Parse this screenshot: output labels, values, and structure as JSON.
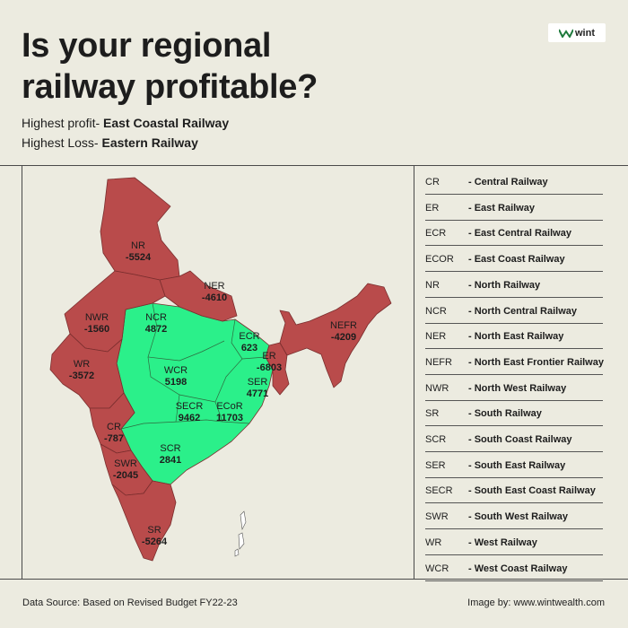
{
  "title_line1": "Is your regional",
  "title_line2": "railway profitable?",
  "highest_profit_label": "Highest profit- ",
  "highest_profit_value": "East Coastal Railway",
  "highest_loss_label": "Highest Loss- ",
  "highest_loss_value": "Eastern Railway",
  "logo_text": "wint",
  "colors": {
    "profit": "#2bf08a",
    "loss": "#b94b4b",
    "background": "#ecebe0"
  },
  "zones": [
    {
      "code": "NR",
      "value": "-5524"
    },
    {
      "code": "NER",
      "value": "-4610"
    },
    {
      "code": "NWR",
      "value": "-1560"
    },
    {
      "code": "NCR",
      "value": "4872"
    },
    {
      "code": "NEFR",
      "value": "-4209"
    },
    {
      "code": "ECR",
      "value": "623"
    },
    {
      "code": "ER",
      "value": "-6803"
    },
    {
      "code": "WR",
      "value": "-3572"
    },
    {
      "code": "WCR",
      "value": "5198"
    },
    {
      "code": "SER",
      "value": "4771"
    },
    {
      "code": "SECR",
      "value": "9462"
    },
    {
      "code": "ECoR",
      "value": "11703"
    },
    {
      "code": "CR",
      "value": "-787"
    },
    {
      "code": "SCR",
      "value": "2841"
    },
    {
      "code": "SWR",
      "value": "-2045"
    },
    {
      "code": "SR",
      "value": "-5264"
    }
  ],
  "legend": [
    {
      "code": "CR",
      "name": "- Central Railway"
    },
    {
      "code": "ER",
      "name": "- East Railway"
    },
    {
      "code": "ECR",
      "name": "- East Central Railway"
    },
    {
      "code": "ECOR",
      "name": "- East Coast Railway"
    },
    {
      "code": "NR",
      "name": "- North Railway"
    },
    {
      "code": "NCR",
      "name": "- North Central Railway"
    },
    {
      "code": "NER",
      "name": "- North East Railway"
    },
    {
      "code": "NEFR",
      "name": "- North East Frontier Railway"
    },
    {
      "code": "NWR",
      "name": "- North West Railway"
    },
    {
      "code": "SR",
      "name": "- South Railway"
    },
    {
      "code": "SCR",
      "name": "- South Coast Railway"
    },
    {
      "code": "SER",
      "name": "- South East Railway"
    },
    {
      "code": "SECR",
      "name": "- South East Coast Railway"
    },
    {
      "code": "SWR",
      "name": "- South West Railway"
    },
    {
      "code": "WR",
      "name": "- West Railway"
    },
    {
      "code": "WCR",
      "name": "- West Coast Railway"
    }
  ],
  "footer_left": "Data Source: Based on Revised Budget FY22-23",
  "footer_right": "Image by: www.wintwealth.com"
}
